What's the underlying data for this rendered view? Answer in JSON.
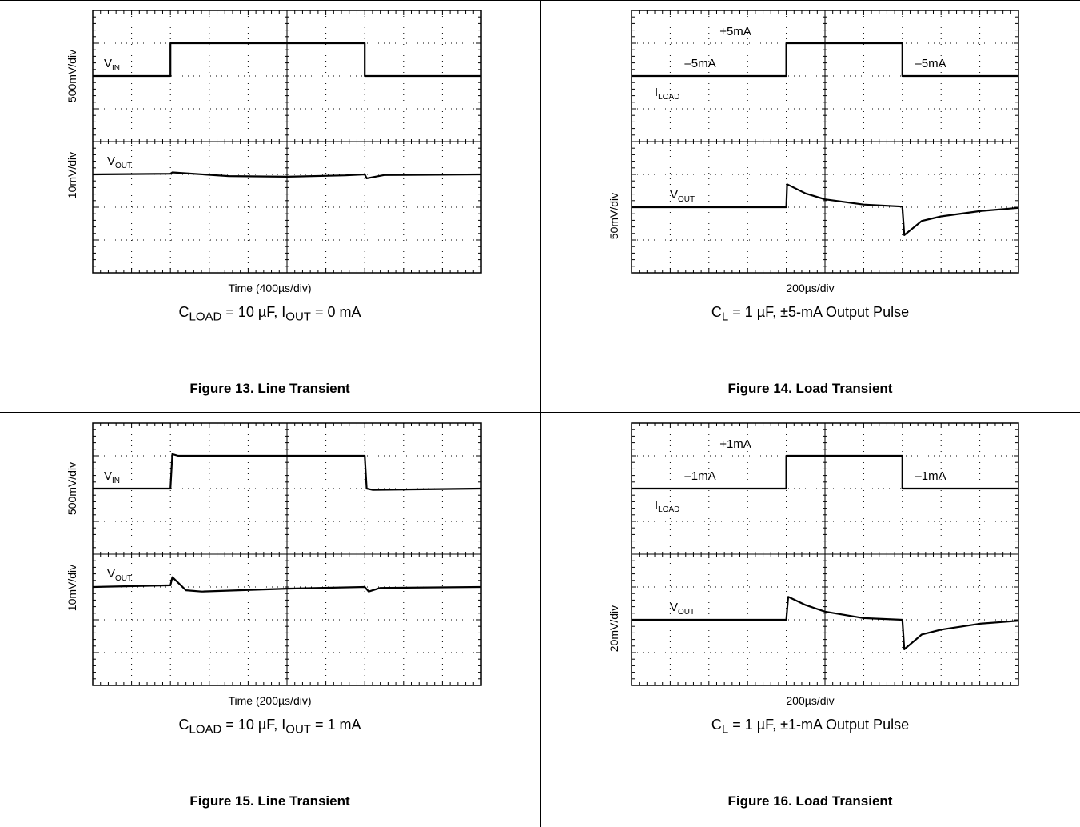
{
  "colors": {
    "trace": "#000000",
    "grid": "#000000",
    "background": "#ffffff"
  },
  "figures": [
    {
      "id": "fig13",
      "caption": "Figure 13. Line Transient",
      "condition": {
        "c": "C",
        "csub": "LOAD",
        "mid": " = 10 µF, I",
        "isub": "OUT",
        "end": " = 0 mA"
      },
      "xlabel": "Time (400µs/div)",
      "ylabel_top": "500mV/div",
      "ylabel_bottom": "10mV/div",
      "label_top": {
        "main": "V",
        "sub": "IN"
      },
      "label_bottom": {
        "main": "V",
        "sub": "OUT"
      },
      "annotations": {
        "left": "",
        "center": "",
        "right": ""
      }
    },
    {
      "id": "fig14",
      "caption": "Figure 14. Load Transient",
      "condition": {
        "c": "C",
        "csub": "L",
        "mid": " = 1 µF, ±5-mA Output Pulse",
        "isub": "",
        "end": ""
      },
      "xlabel": "200µs/div",
      "ylabel_top": "",
      "ylabel_bottom": "50mV/div",
      "label_top": {
        "main": "I",
        "sub": "LOAD"
      },
      "label_bottom": {
        "main": "V",
        "sub": "OUT"
      },
      "annotations": {
        "left": "–5mA",
        "center": "+5mA",
        "right": "–5mA"
      }
    },
    {
      "id": "fig15",
      "caption": "Figure 15. Line Transient",
      "condition": {
        "c": "C",
        "csub": "LOAD",
        "mid": " = 10 µF, I",
        "isub": "OUT",
        "end": " = 1 mA"
      },
      "xlabel": "Time (200µs/div)",
      "ylabel_top": "500mV/div",
      "ylabel_bottom": "10mV/div",
      "label_top": {
        "main": "V",
        "sub": "IN"
      },
      "label_bottom": {
        "main": "V",
        "sub": "OUT"
      },
      "annotations": {
        "left": "",
        "center": "",
        "right": ""
      }
    },
    {
      "id": "fig16",
      "caption": "Figure 16. Load Transient",
      "condition": {
        "c": "C",
        "csub": "L",
        "mid": " = 1 µF, ±1-mA Output Pulse",
        "isub": "",
        "end": ""
      },
      "xlabel": "200µs/div",
      "ylabel_top": "",
      "ylabel_bottom": "20mV/div",
      "label_top": {
        "main": "I",
        "sub": "LOAD"
      },
      "label_bottom": {
        "main": "V",
        "sub": "OUT"
      },
      "annotations": {
        "left": "–1mA",
        "center": "+1mA",
        "right": "–1mA"
      }
    }
  ],
  "chart_data": [
    {
      "type": "line",
      "title": "Figure 13. Line Transient",
      "xlabel": "Time (400µs/div)",
      "xlim": [
        0,
        10
      ],
      "ylim": [
        0,
        8
      ],
      "grid": true,
      "series": [
        {
          "name": "VIN",
          "x": [
            0,
            2.0,
            2.0,
            7.0,
            7.0,
            10
          ],
          "y": [
            6.0,
            6.0,
            7.0,
            7.0,
            6.0,
            6.0
          ]
        },
        {
          "name": "VOUT",
          "x": [
            0,
            2.0,
            2.05,
            3.5,
            5.0,
            6.5,
            7.0,
            7.05,
            7.5,
            10
          ],
          "y": [
            3.0,
            3.02,
            3.06,
            2.95,
            2.93,
            2.97,
            3.0,
            2.88,
            2.98,
            3.0
          ]
        }
      ]
    },
    {
      "type": "line",
      "title": "Figure 14. Load Transient",
      "xlabel": "200µs/div",
      "xlim": [
        0,
        10
      ],
      "ylim": [
        0,
        8
      ],
      "grid": true,
      "series": [
        {
          "name": "ILOAD",
          "x": [
            0,
            4.0,
            4.0,
            7.0,
            7.0,
            10
          ],
          "y": [
            6.0,
            6.0,
            7.0,
            7.0,
            6.0,
            6.0
          ]
        },
        {
          "name": "VOUT",
          "x": [
            0,
            4.0,
            4.02,
            4.5,
            5.0,
            6.0,
            7.0,
            7.0,
            7.05,
            7.5,
            8.0,
            9.0,
            10
          ],
          "y": [
            2.0,
            2.0,
            2.7,
            2.42,
            2.24,
            2.08,
            2.02,
            2.0,
            1.15,
            1.58,
            1.72,
            1.88,
            1.98
          ]
        }
      ]
    },
    {
      "type": "line",
      "title": "Figure 15. Line Transient",
      "xlabel": "Time (200µs/div)",
      "xlim": [
        0,
        10
      ],
      "ylim": [
        0,
        8
      ],
      "grid": true,
      "series": [
        {
          "name": "VIN",
          "x": [
            0,
            2.0,
            2.05,
            2.2,
            7.0,
            7.05,
            7.2,
            10
          ],
          "y": [
            6.0,
            6.0,
            7.05,
            7.0,
            7.0,
            6.0,
            5.96,
            6.0
          ]
        },
        {
          "name": "VOUT",
          "x": [
            0,
            2.0,
            2.05,
            2.4,
            2.8,
            5.0,
            7.0,
            7.1,
            7.4,
            10
          ],
          "y": [
            3.0,
            3.05,
            3.3,
            2.9,
            2.86,
            2.95,
            3.0,
            2.86,
            2.97,
            3.0
          ]
        }
      ]
    },
    {
      "type": "line",
      "title": "Figure 16. Load Transient",
      "xlabel": "200µs/div",
      "xlim": [
        0,
        10
      ],
      "ylim": [
        0,
        8
      ],
      "grid": true,
      "series": [
        {
          "name": "ILOAD",
          "x": [
            0,
            4.0,
            4.0,
            7.0,
            7.0,
            10
          ],
          "y": [
            6.0,
            6.0,
            7.0,
            7.0,
            6.0,
            6.0
          ]
        },
        {
          "name": "VOUT",
          "x": [
            0,
            4.0,
            4.05,
            4.5,
            5.0,
            6.0,
            7.0,
            7.0,
            7.05,
            7.5,
            8.0,
            9.0,
            10
          ],
          "y": [
            2.0,
            2.0,
            2.7,
            2.45,
            2.25,
            2.05,
            2.0,
            2.0,
            1.1,
            1.55,
            1.7,
            1.88,
            1.97
          ]
        }
      ]
    }
  ]
}
